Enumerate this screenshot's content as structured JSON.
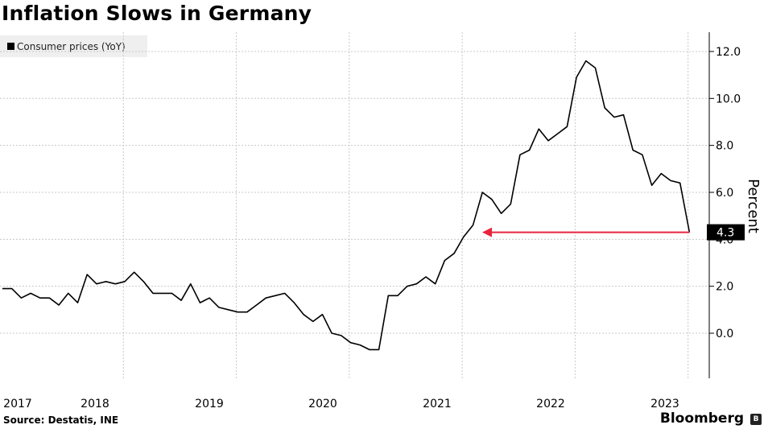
{
  "chart_data": {
    "type": "line",
    "title": "Inflation Slows in Germany",
    "ylabel": "Percent",
    "xlabel": "",
    "ylim": [
      -1.8,
      12.8
    ],
    "yticks": [
      "0.0",
      "2.0",
      "4.0",
      "6.0",
      "8.0",
      "10.0",
      "12.0"
    ],
    "ytick_values": [
      0,
      2,
      4,
      6,
      8,
      10,
      12
    ],
    "xticks": [
      "2017",
      "2018",
      "2019",
      "2020",
      "2021",
      "2022",
      "2023"
    ],
    "grid": true,
    "legend": "top-left",
    "series": [
      {
        "name": "Consumer prices (YoY)",
        "x_start": "2017-01",
        "values": [
          1.9,
          1.9,
          1.5,
          1.7,
          1.5,
          1.5,
          1.2,
          1.7,
          1.3,
          2.5,
          2.1,
          2.2,
          2.1,
          2.2,
          2.6,
          2.2,
          1.7,
          1.7,
          1.7,
          1.4,
          2.1,
          1.3,
          1.5,
          1.1,
          1.0,
          0.9,
          0.9,
          1.2,
          1.5,
          1.6,
          1.7,
          1.3,
          0.8,
          0.5,
          0.8,
          0.0,
          -0.1,
          -0.4,
          -0.5,
          -0.7,
          -0.7,
          1.6,
          1.6,
          2.0,
          2.1,
          2.4,
          2.1,
          3.1,
          3.4,
          4.1,
          4.6,
          6.0,
          5.7,
          5.1,
          5.5,
          7.6,
          7.8,
          8.7,
          8.2,
          8.5,
          8.8,
          10.9,
          11.6,
          11.3,
          9.6,
          9.2,
          9.3,
          7.8,
          7.6,
          6.3,
          6.8,
          6.5,
          6.4,
          4.3
        ]
      }
    ],
    "annotations": [
      {
        "label": "4.3",
        "value": 4.3
      }
    ]
  },
  "source": "Source: Destatis, INE",
  "brand": "Bloomberg",
  "brand_icon": "bloomberg-logo-icon",
  "colors": {
    "line": "#000000",
    "arrow": "#e8253c",
    "grid": "#c8c8c8",
    "legend_bg": "#efefef"
  }
}
